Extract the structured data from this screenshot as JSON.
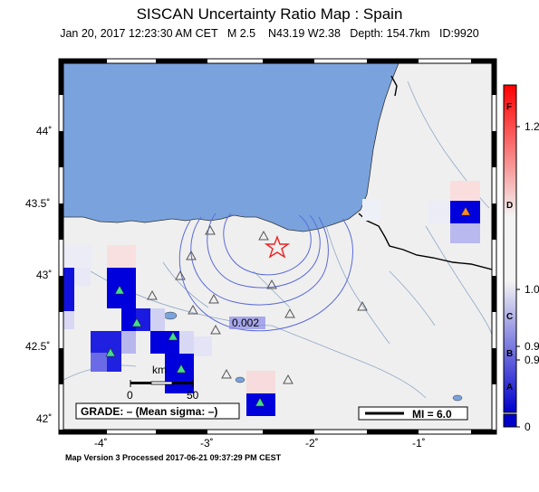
{
  "header": {
    "title": "SISCAN Uncertainty Ratio Map : Spain",
    "subtitle": "Jan 20, 2017 12:23:30 AM CET   M 2.5    N43.19 W2.38   Depth: 154.7km   ID:9920"
  },
  "map": {
    "lon_ticks": [
      "-4˚",
      "-3˚",
      "-2˚",
      "-1˚"
    ],
    "lat_ticks": [
      "44˚",
      "43.5˚",
      "43˚",
      "42.5˚",
      "42˚"
    ],
    "contour_label": "0.002",
    "scalebar": {
      "unit": "km",
      "labels": [
        "0",
        "50"
      ]
    },
    "grade_box": "GRADE: – (Mean sigma: –)",
    "mi_box": "MI = 6.0",
    "epicenter_icon": "star-icon",
    "station_icon": "triangle-icon"
  },
  "colorbar": {
    "letters": [
      "F",
      "D",
      "C",
      "B",
      "A"
    ],
    "values": [
      "1.2",
      "1.0",
      "0.9",
      "0.9",
      "0"
    ],
    "colors": {
      "high": "#ff0000",
      "low": "#0000cc",
      "mid": "#f3f3f3"
    }
  },
  "footer": "Map Version 3 Processed 2017-06-21 09:37:29 PM CEST"
}
